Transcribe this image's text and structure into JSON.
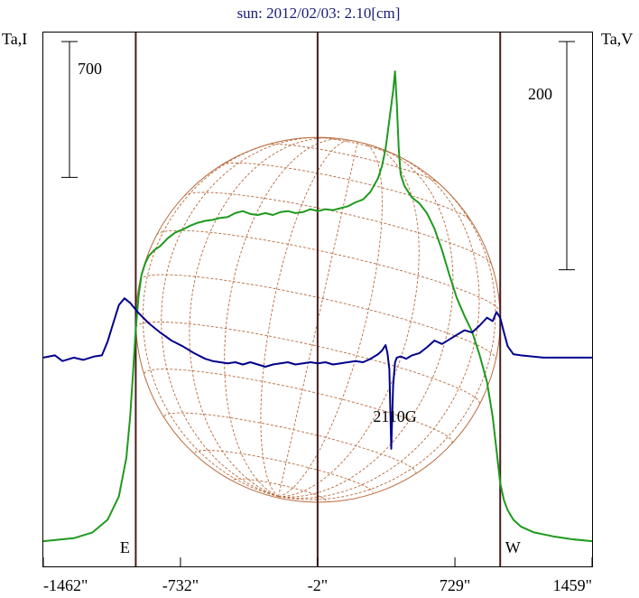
{
  "chart_data": {
    "type": "line",
    "title": "sun: 2012/02/03: 2.10[cm]",
    "left_axis_label": "Ta,I",
    "right_axis_label": "Ta,V",
    "xlabel": "",
    "x_ticks": [
      {
        "label": "-1462\"",
        "value": -1462
      },
      {
        "label": "-732\"",
        "value": -732
      },
      {
        "label": "-2\"",
        "value": -2
      },
      {
        "label": "729\"",
        "value": 729
      },
      {
        "label": "1459\"",
        "value": 1459
      }
    ],
    "xlim": [
      -1462,
      1459
    ],
    "left_scale_bar": {
      "label": "700",
      "value": 700
    },
    "right_scale_bar": {
      "label": "200",
      "value": 200
    },
    "markers": [
      {
        "label": "E",
        "x": -970
      },
      {
        "label": "",
        "x": -2
      },
      {
        "label": "W",
        "x": 970
      }
    ],
    "annotations": [
      {
        "text": "2110G",
        "x": 400
      }
    ],
    "solar_disk": {
      "radius_arcsec": 970
    },
    "colors": {
      "stokes_i": "#1e9a1e",
      "stokes_v": "#00008b",
      "markers": "#4a1c1c",
      "disk": "#b86a3c",
      "title": "#1a1a7a"
    },
    "series": [
      {
        "name": "Ta,I",
        "color": "#1e9a1e",
        "x": [
          -1462,
          -1300,
          -1200,
          -1120,
          -1060,
          -1020,
          -1000,
          -985,
          -970,
          -955,
          -940,
          -920,
          -900,
          -870,
          -840,
          -800,
          -760,
          -720,
          -680,
          -640,
          -600,
          -560,
          -520,
          -480,
          -440,
          -400,
          -360,
          -320,
          -280,
          -240,
          -200,
          -160,
          -120,
          -80,
          -40,
          0,
          40,
          80,
          120,
          160,
          200,
          240,
          280,
          320,
          340,
          360,
          380,
          400,
          410,
          420,
          430,
          440,
          460,
          480,
          500,
          540,
          580,
          620,
          660,
          700,
          740,
          780,
          820,
          860,
          900,
          930,
          950,
          970,
          990,
          1010,
          1040,
          1080,
          1150,
          1250,
          1350,
          1459
        ],
        "y": [
          0,
          15,
          45,
          110,
          230,
          430,
          640,
          860,
          1090,
          1260,
          1370,
          1430,
          1470,
          1500,
          1520,
          1560,
          1590,
          1605,
          1625,
          1640,
          1650,
          1655,
          1665,
          1670,
          1690,
          1700,
          1685,
          1680,
          1690,
          1680,
          1695,
          1700,
          1690,
          1695,
          1710,
          1700,
          1710,
          1705,
          1715,
          1725,
          1745,
          1760,
          1800,
          1870,
          1930,
          2020,
          2170,
          2320,
          2420,
          2250,
          2020,
          1890,
          1830,
          1800,
          1770,
          1740,
          1690,
          1610,
          1500,
          1370,
          1250,
          1160,
          1080,
          960,
          820,
          640,
          470,
          300,
          210,
          160,
          110,
          75,
          45,
          25,
          10,
          0
        ]
      },
      {
        "name": "Ta,V",
        "color": "#00008b",
        "x": [
          -1462,
          -1400,
          -1360,
          -1300,
          -1250,
          -1190,
          -1150,
          -1120,
          -1090,
          -1060,
          -1030,
          -1000,
          -960,
          -900,
          -840,
          -780,
          -720,
          -660,
          -600,
          -560,
          -520,
          -480,
          -440,
          -400,
          -360,
          -320,
          -280,
          -240,
          -200,
          -160,
          -120,
          -80,
          -40,
          0,
          40,
          80,
          120,
          160,
          200,
          240,
          280,
          320,
          340,
          360,
          370,
          380,
          390,
          400,
          410,
          420,
          440,
          470,
          500,
          540,
          580,
          620,
          660,
          700,
          740,
          780,
          820,
          860,
          900,
          930,
          950,
          970,
          990,
          1010,
          1040,
          1080,
          1140,
          1200,
          1300,
          1459
        ],
        "y": [
          0,
          2,
          -3,
          0,
          -2,
          1,
          2,
          14,
          30,
          46,
          52,
          48,
          40,
          30,
          22,
          15,
          10,
          4,
          -1,
          -3,
          -4,
          -5,
          -4,
          -6,
          -4,
          -6,
          -8,
          -6,
          -5,
          -4,
          -6,
          -5,
          -4,
          -5,
          -4,
          -6,
          -5,
          -4,
          -3,
          -4,
          -1,
          3,
          6,
          11,
          4,
          -10,
          -80,
          -24,
          -4,
          0,
          1,
          -1,
          2,
          4,
          9,
          15,
          12,
          16,
          20,
          24,
          22,
          28,
          35,
          32,
          40,
          35,
          22,
          10,
          3,
          2,
          1,
          0,
          0,
          0
        ]
      }
    ],
    "y_left_range": [
      -130,
      2620
    ],
    "y_right_range": [
      -183,
      285
    ]
  }
}
